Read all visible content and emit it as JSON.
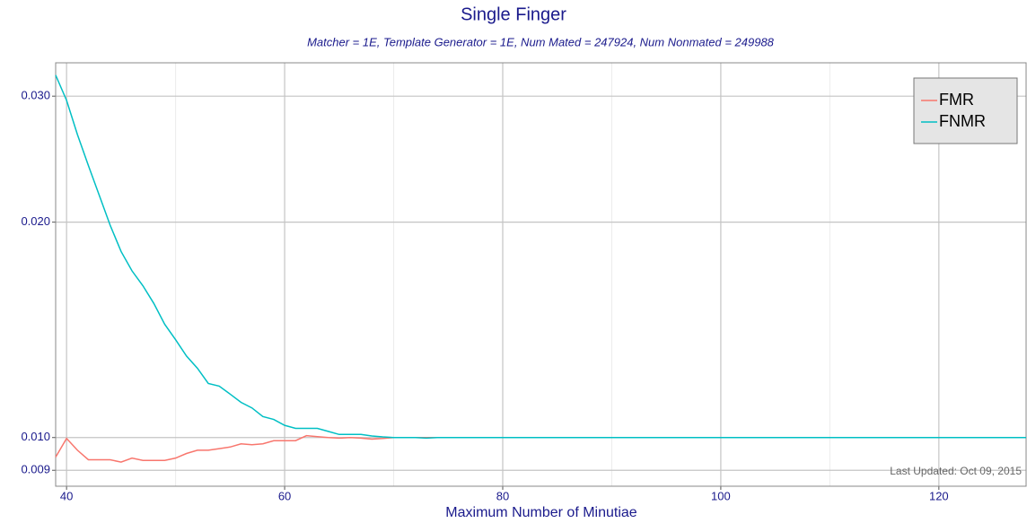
{
  "chart_data": {
    "type": "line",
    "title": "Single Finger",
    "subtitle": "Matcher = 1E,   Template Generator = 1E,   Num Mated = 247924,   Num Nonmated = 249988",
    "x_label": "Maximum Number of Minutiae",
    "annotation": "Last Updated: Oct 09, 2015",
    "x": [
      39,
      40,
      41,
      42,
      43,
      44,
      45,
      46,
      47,
      48,
      49,
      50,
      51,
      52,
      53,
      54,
      55,
      56,
      57,
      58,
      59,
      60,
      61,
      62,
      63,
      64,
      65,
      66,
      67,
      68,
      69,
      70,
      71,
      72,
      73,
      74,
      75,
      76,
      77,
      78,
      79,
      80,
      81,
      82,
      83,
      84,
      85,
      86,
      87,
      88,
      89,
      90,
      91,
      92,
      93,
      94,
      95,
      96,
      97,
      98,
      99,
      100,
      101,
      102,
      103,
      104,
      105,
      106,
      107,
      108,
      109,
      110,
      111,
      112,
      113,
      114,
      115,
      116,
      117,
      118,
      119,
      120,
      121,
      122,
      123,
      124,
      125,
      126,
      127,
      128
    ],
    "series": [
      {
        "name": "FMR",
        "color": "#f8766d",
        "values": [
          0.00939,
          0.00997,
          0.0096,
          0.00931,
          0.00931,
          0.00931,
          0.00924,
          0.00936,
          0.00929,
          0.00929,
          0.00929,
          0.00936,
          0.0095,
          0.0096,
          0.0096,
          0.00965,
          0.0097,
          0.0098,
          0.00977,
          0.0098,
          0.0099,
          0.0099,
          0.0099,
          0.01006,
          0.01003,
          0.01,
          0.00998,
          0.01,
          0.00998,
          0.00995,
          0.00997,
          0.01,
          0.01,
          0.01,
          0.01,
          0.01,
          0.01,
          0.01,
          0.01,
          0.01,
          0.01,
          0.01,
          0.01,
          0.01,
          0.01,
          0.01,
          0.01,
          0.01,
          0.01,
          0.01,
          0.01,
          0.01,
          0.01,
          0.01,
          0.01,
          0.01,
          0.01,
          0.01,
          0.01,
          0.01,
          0.01,
          0.01,
          0.01,
          0.01,
          0.01,
          0.01,
          0.01,
          0.01,
          0.01,
          0.01,
          0.01,
          0.01,
          0.01,
          0.01,
          0.01,
          0.01,
          0.01,
          0.01,
          0.01,
          0.01,
          0.01,
          0.01,
          0.01,
          0.01,
          0.01,
          0.01,
          0.01,
          0.01,
          0.01,
          0.01
        ]
      },
      {
        "name": "FNMR",
        "color": "#00bfc4",
        "values": [
          0.0321,
          0.0296,
          0.0265,
          0.024,
          0.0218,
          0.0198,
          0.0182,
          0.0171,
          0.0163,
          0.0154,
          0.0144,
          0.0137,
          0.013,
          0.0125,
          0.0119,
          0.0118,
          0.0115,
          0.0112,
          0.011,
          0.0107,
          0.0106,
          0.0104,
          0.0103,
          0.0103,
          0.0103,
          0.0102,
          0.0101,
          0.0101,
          0.0101,
          0.01005,
          0.01002,
          0.01,
          0.01,
          0.01,
          0.00998,
          0.01,
          0.01,
          0.01,
          0.01,
          0.01,
          0.01,
          0.01,
          0.01,
          0.01,
          0.01,
          0.01,
          0.01,
          0.01,
          0.01,
          0.01,
          0.01,
          0.01,
          0.01,
          0.01,
          0.01,
          0.01,
          0.01,
          0.01,
          0.01,
          0.01,
          0.01,
          0.01,
          0.01,
          0.01,
          0.01,
          0.01,
          0.01,
          0.01,
          0.01,
          0.01,
          0.01,
          0.01,
          0.01,
          0.01,
          0.01,
          0.01,
          0.01,
          0.01,
          0.01,
          0.01,
          0.01,
          0.01,
          0.01,
          0.01,
          0.01,
          0.01,
          0.01,
          0.01,
          0.01,
          0.01
        ]
      }
    ],
    "xlim": [
      39,
      128
    ],
    "xticks": [
      40,
      60,
      80,
      100,
      120
    ],
    "x_minor_ticks": [
      50,
      70,
      90,
      110
    ],
    "ylim": [
      0.00855,
      0.0334
    ],
    "y_log": true,
    "yticks": [
      0.009,
      {
        "value": 0.01,
        "label": "0.010"
      },
      {
        "value": 0.02,
        "label": "0.020"
      },
      {
        "value": 0.03,
        "label": "0.030"
      }
    ],
    "grid": true,
    "legend": "top-right"
  }
}
